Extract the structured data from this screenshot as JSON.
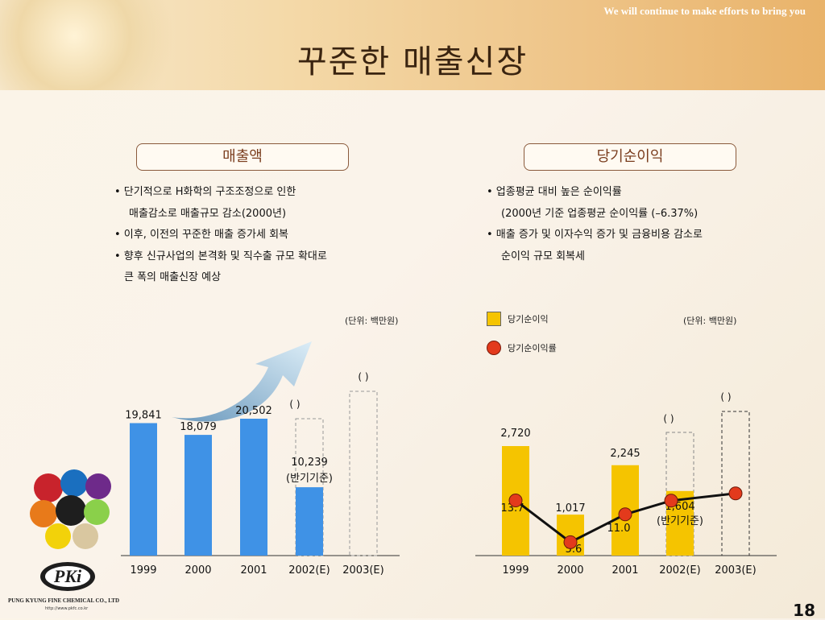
{
  "header": {
    "slogan": "We will continue to make efforts to bring you",
    "title": "꾸준한 매출신장"
  },
  "left": {
    "pill": "매출액",
    "bullets": [
      "• 단기적으로 H화학의 구조조정으로 인한",
      "매출감소로 매출규모 감소(2000년)",
      "• 이후, 이전의 꾸준한 매출 증가세 회복",
      "• 향후 신규사업의 본격화 및 직수출 규모 확대로",
      "큰 폭의 매출신장 예상"
    ],
    "unit": "(단위: 백만원)"
  },
  "right": {
    "pill": "당기순이익",
    "bullets": [
      "• 업종평균 대비 높은 순이익률",
      "(2000년 기준 업종평균 순이익률 (–6.37%)",
      "• 매출 증가 및 이자수익 증가 및 금융비용 감소로",
      "순이익 규모 회복세"
    ],
    "unit": "(단위: 백만원)",
    "legend": {
      "bar": "당기순이익",
      "dot": "당기순이익률"
    }
  },
  "chart_data": [
    {
      "type": "bar",
      "categories": [
        "1999",
        "2000",
        "2001",
        "2002(E)",
        "2003(E)"
      ],
      "values": [
        19841,
        18079,
        20502,
        10239,
        null
      ],
      "value_labels": [
        "19,841",
        "18,079",
        "20,502",
        "10,239",
        ""
      ],
      "notes": [
        "",
        "",
        "",
        "(반기기준)",
        ""
      ],
      "placeholder_labels": [
        "(        )",
        "(        )"
      ],
      "ylim": [
        0,
        30000
      ],
      "colors": {
        "bar": "#3f92e6",
        "estimate_outline": "#999999"
      }
    },
    {
      "type": "bar",
      "categories": [
        "1999",
        "2000",
        "2001",
        "2002(E)",
        "2003(E)"
      ],
      "series": [
        {
          "name": "당기순이익",
          "values": [
            2720,
            1017,
            2245,
            1604,
            null
          ],
          "labels": [
            "2,720",
            "1,017",
            "2,245",
            "1,604",
            ""
          ]
        },
        {
          "name": "당기순이익률",
          "values": [
            13.7,
            5.6,
            11.0,
            null,
            null
          ],
          "labels": [
            "13.7",
            "5.6",
            "11.0",
            "",
            ""
          ]
        }
      ],
      "notes": [
        "",
        "",
        "",
        "(반기기준)",
        ""
      ],
      "placeholder_labels": [
        "(      )",
        "(      )"
      ],
      "colors": {
        "bar": "#f5c400",
        "dot": "#e33a1c",
        "line": "#111111"
      }
    }
  ],
  "footer": {
    "company": "PUNG KYUNG FINE CHEMICAL CO., LTD",
    "url": "http://www.pkfc.co.kr",
    "logo_text": "PKi",
    "page": "18"
  }
}
